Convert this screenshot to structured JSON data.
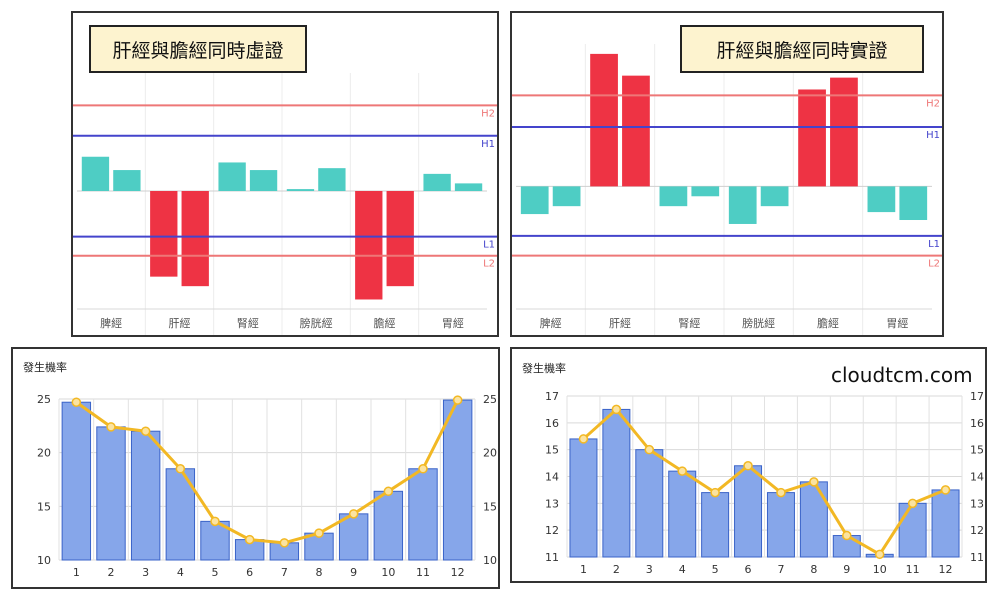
{
  "chart_data": [
    {
      "type": "bar",
      "title": "肝經與膽經同時虛證",
      "categories": [
        "脾經",
        "肝經",
        "腎經",
        "膀胱經",
        "膽經",
        "胃經"
      ],
      "series": [
        {
          "values": [
            18,
            -45,
            15,
            1,
            -57,
            9
          ]
        },
        {
          "values": [
            11,
            -50,
            11,
            12,
            -50,
            4
          ]
        }
      ],
      "reference_lines": [
        {
          "label": "H2",
          "value": 45,
          "color": "#ee7777"
        },
        {
          "label": "H1",
          "value": 29,
          "color": "#4444cc"
        },
        {
          "label": "L1",
          "value": -24,
          "color": "#4444cc"
        },
        {
          "label": "L2",
          "value": -34,
          "color": "#ee7777"
        }
      ],
      "ylim": [
        -62,
        62
      ],
      "colors": {
        "positive": "#4ecdc4",
        "negative": "#ee3344"
      }
    },
    {
      "type": "bar",
      "title": "肝經與膽經同時實證",
      "categories": [
        "脾經",
        "肝經",
        "腎經",
        "膀胱經",
        "膽經",
        "胃經"
      ],
      "series": [
        {
          "values": [
            -14,
            67,
            -10,
            -19,
            49,
            -13
          ]
        },
        {
          "values": [
            -10,
            56,
            -5,
            -10,
            55,
            -17
          ]
        }
      ],
      "reference_lines": [
        {
          "label": "H2",
          "value": 46,
          "color": "#ee7777"
        },
        {
          "label": "H1",
          "value": 30,
          "color": "#4444cc"
        },
        {
          "label": "L1",
          "value": -25,
          "color": "#4444cc"
        },
        {
          "label": "L2",
          "value": -35,
          "color": "#ee7777"
        }
      ],
      "ylim": [
        -62,
        72
      ],
      "colors": {
        "positive": "#ee3344",
        "negative": "#4ecdc4"
      }
    },
    {
      "type": "bar",
      "ylabel": "發生機率",
      "categories": [
        "1",
        "2",
        "3",
        "4",
        "5",
        "6",
        "7",
        "8",
        "9",
        "10",
        "11",
        "12"
      ],
      "values": [
        24.7,
        22.4,
        22.0,
        18.5,
        13.6,
        11.9,
        11.6,
        12.5,
        14.3,
        16.4,
        18.5,
        24.9
      ],
      "line_values": [
        24.7,
        22.4,
        22.0,
        18.5,
        13.6,
        11.9,
        11.6,
        12.5,
        14.3,
        16.4,
        18.5,
        24.9
      ],
      "ylim": [
        10,
        25
      ],
      "yticks": [
        10,
        15,
        20,
        25
      ],
      "grid": true,
      "colors": {
        "bar": "#86a6ea",
        "bar_border": "#3a63c8",
        "line": "#f2b824"
      }
    },
    {
      "type": "bar",
      "ylabel": "發生機率",
      "categories": [
        "1",
        "2",
        "3",
        "4",
        "5",
        "6",
        "7",
        "8",
        "9",
        "10",
        "11",
        "12"
      ],
      "values": [
        15.4,
        16.5,
        15.0,
        14.2,
        13.4,
        14.4,
        13.4,
        13.8,
        11.8,
        11.1,
        13.0,
        13.5
      ],
      "line_values": [
        15.4,
        16.5,
        15.0,
        14.2,
        13.4,
        14.4,
        13.4,
        13.8,
        11.8,
        11.1,
        13.0,
        13.5
      ],
      "ylim": [
        11,
        17
      ],
      "yticks": [
        11,
        12,
        13,
        14,
        15,
        16,
        17
      ],
      "grid": true,
      "colors": {
        "bar": "#86a6ea",
        "bar_border": "#3a63c8",
        "line": "#f2b824"
      }
    }
  ],
  "brand": "cloudtcm.com"
}
